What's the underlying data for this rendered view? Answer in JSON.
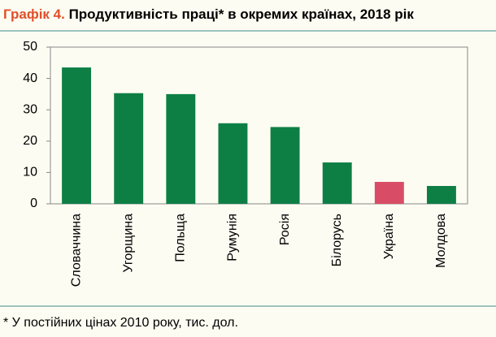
{
  "chart_data": {
    "type": "bar",
    "title_number": "Графік 4.",
    "title": "Продуктивність праці* в окремих країнах, 2018 рік",
    "categories": [
      "Словаччина",
      "Угорщина",
      "Польща",
      "Румунія",
      "Росія",
      "Білорусь",
      "Україна",
      "Молдова"
    ],
    "values": [
      43.5,
      35.3,
      35.0,
      25.7,
      24.5,
      13.2,
      7.0,
      5.7
    ],
    "colors": [
      "#0d7f45",
      "#0d7f45",
      "#0d7f45",
      "#0d7f45",
      "#0d7f45",
      "#0d7f45",
      "#d94c66",
      "#0d7f45"
    ],
    "ylim": [
      0,
      50
    ],
    "yticks": [
      0,
      10,
      20,
      30,
      40,
      50
    ],
    "footnote": "* У постійних цінах 2010 року, тис. дол."
  }
}
